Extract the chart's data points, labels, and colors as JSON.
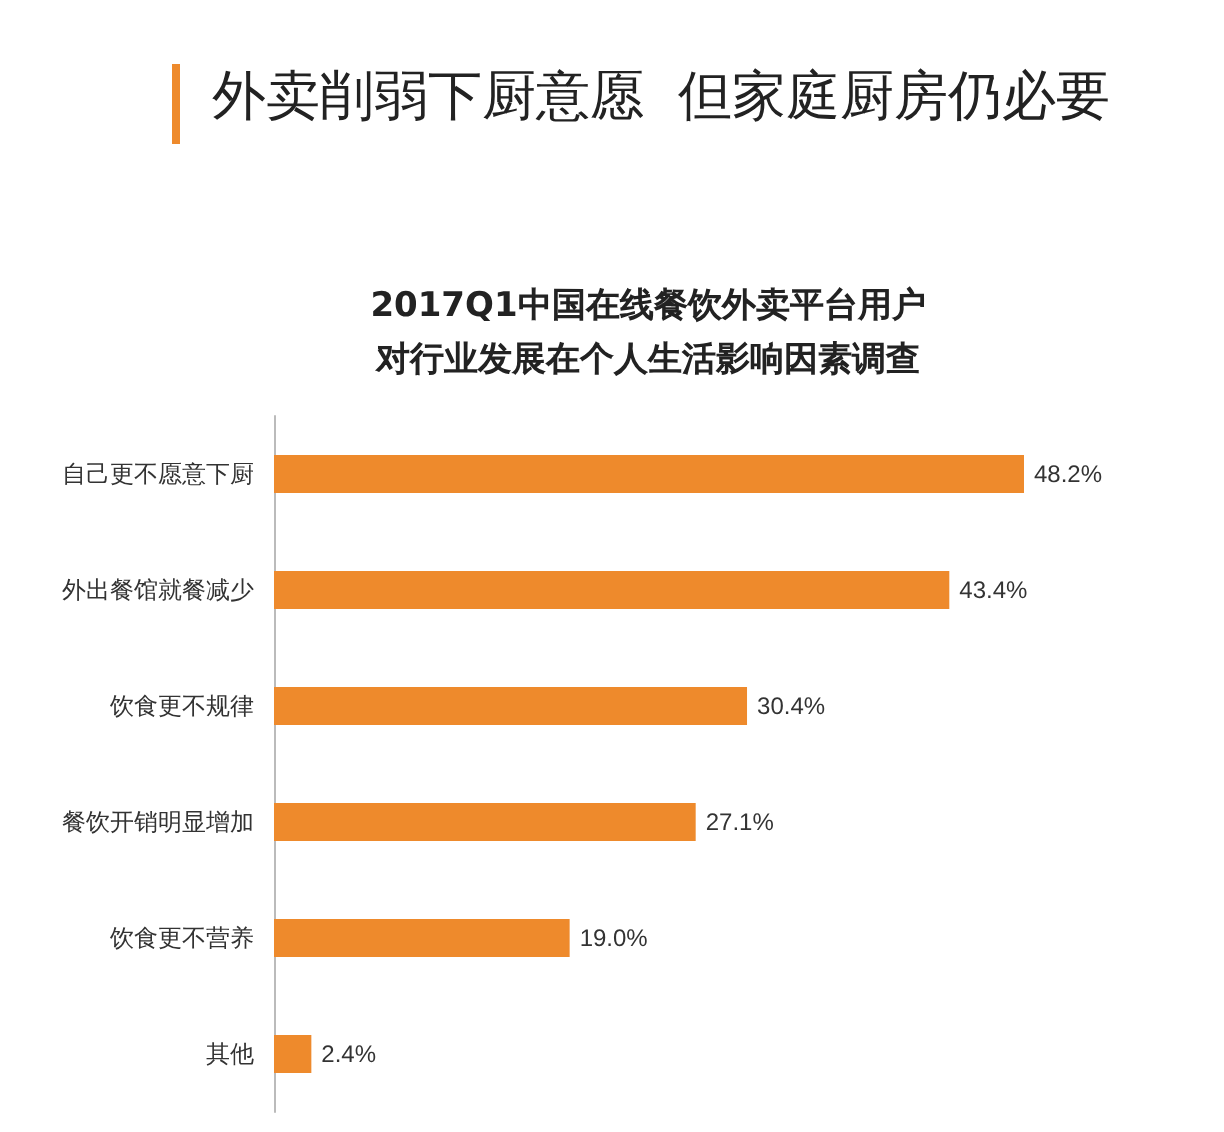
{
  "chart_data": {
    "type": "bar",
    "orientation": "horizontal",
    "title": "外卖削弱下厨意愿  但家庭厨房仍必要",
    "subtitle": "2017Q1中国在线餐饮外卖平台用户对行业发展在个人生活影响因素调查",
    "categories": [
      "自己更不愿意下厨",
      "外出餐馆就餐减少",
      "饮食更不规律",
      "餐饮开销明显增加",
      "饮食更不营养",
      "其他"
    ],
    "values": [
      48.2,
      43.4,
      30.4,
      27.1,
      19.0,
      2.4
    ],
    "value_labels": [
      "48.2%",
      "43.4%",
      "30.4%",
      "27.1%",
      "19.0%",
      "2.4%"
    ],
    "color": "#ee8a2c",
    "tick_labels": "y"
  }
}
